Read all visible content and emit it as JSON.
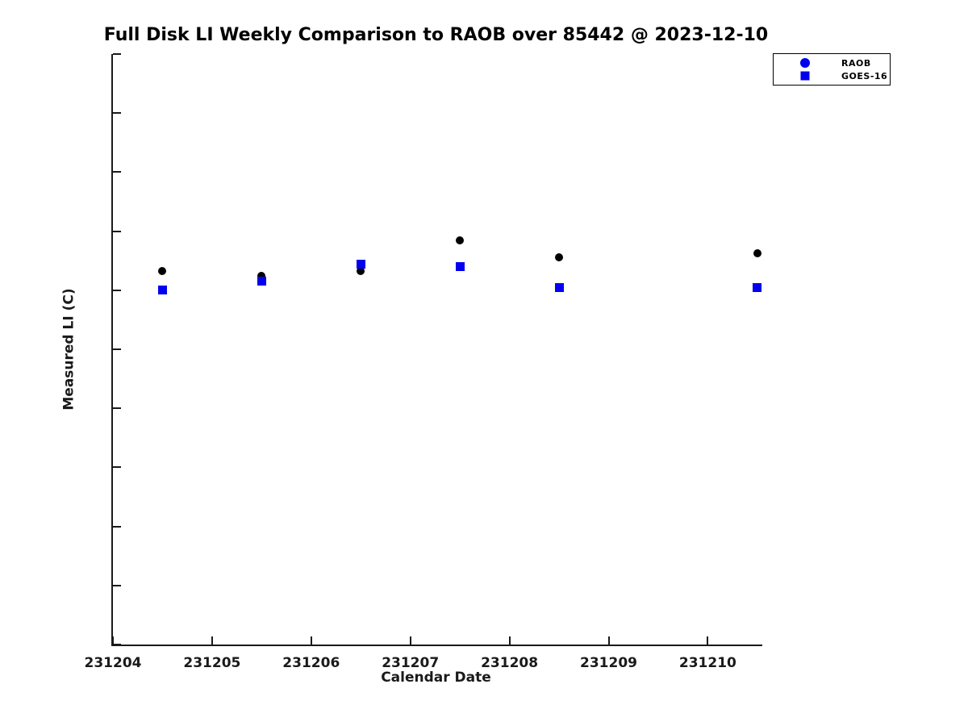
{
  "chart_data": {
    "type": "scatter",
    "title": "Full Disk LI Weekly Comparison to RAOB over 85442 @ 2023-12-10",
    "xlabel": "Calendar Date",
    "ylabel": "Measured LI (C)",
    "xlim": [
      231204,
      231210.55
    ],
    "ylim": [
      -15,
      35
    ],
    "x_ticks": [
      231204,
      231205,
      231206,
      231207,
      231208,
      231209,
      231210
    ],
    "y_ticks": [
      35,
      30,
      25,
      20,
      15,
      10,
      5,
      0,
      -5,
      -10,
      -15
    ],
    "grid": false,
    "legend_position": "top-right",
    "series": [
      {
        "name": "RAOB",
        "marker": "circle",
        "color": "#000000",
        "legend_color": "#0000EE",
        "points": [
          [
            231204.5,
            16.6
          ],
          [
            231205.5,
            16.2
          ],
          [
            231206.5,
            16.6
          ],
          [
            231207.5,
            19.2
          ],
          [
            231208.5,
            17.8
          ],
          [
            231210.5,
            18.1
          ]
        ]
      },
      {
        "name": "GOES-16",
        "marker": "square",
        "color": "#0000EE",
        "legend_color": "#0000EE",
        "points": [
          [
            231204.5,
            15.0
          ],
          [
            231205.5,
            15.8
          ],
          [
            231206.5,
            17.2
          ],
          [
            231207.5,
            17.0
          ],
          [
            231208.5,
            15.2
          ],
          [
            231210.5,
            15.2
          ]
        ]
      }
    ]
  }
}
